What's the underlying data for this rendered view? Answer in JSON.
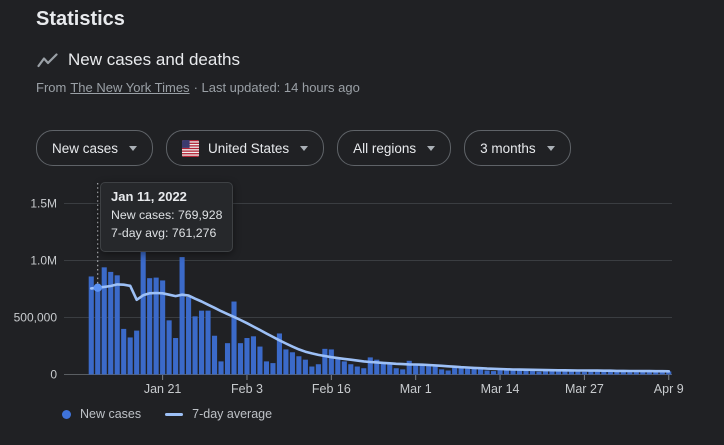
{
  "page": {
    "title": "Statistics"
  },
  "header": {
    "section_title": "New cases and deaths",
    "source_prefix": "From",
    "source_link": "The New York Times",
    "source_suffix": "· Last updated: 14 hours ago"
  },
  "filters": [
    {
      "label": "New cases"
    },
    {
      "label": "United States",
      "flag": "us-flag"
    },
    {
      "label": "All regions"
    },
    {
      "label": "3 months"
    }
  ],
  "tooltip": {
    "title": "Jan 11, 2022",
    "line1": "New cases: 769,928",
    "line2": "7-day avg: 761,276"
  },
  "legend": {
    "items": [
      {
        "label": "New cases"
      },
      {
        "label": "7-day average"
      }
    ]
  },
  "colors": {
    "background": "#202124",
    "bar": "#3b6ac9",
    "avg_line": "#9dc0f6",
    "selected_dot": "#5b92f4",
    "selection_line": "#c9ccd0",
    "text_primary": "#e8eaed",
    "text_secondary": "#9aa0a6",
    "axis_text": "#c8cbce",
    "gridline": "#3a3d41",
    "axis_line": "#5a5e62",
    "tick": "#7d8287",
    "chip_border": "#5f6368",
    "tooltip_bg": "#26282b",
    "flag_red": "#b22234",
    "flag_white": "#eeeeee",
    "flag_canton": "#3c3b6e"
  },
  "chart_data": {
    "type": "bar",
    "title": "New cases and deaths",
    "x_start_date": "Jan 10, 2022",
    "x_end_date": "Apr 9, 2022",
    "x_tick_labels": [
      "Jan 21",
      "Feb 3",
      "Feb 16",
      "Mar 1",
      "Mar 14",
      "Mar 27",
      "Apr 9"
    ],
    "x_tick_day_index": [
      11,
      24,
      37,
      50,
      63,
      76,
      89
    ],
    "y_tick_labels": [
      "0",
      "500,000",
      "1.0M",
      "1.5M"
    ],
    "y_tick_values": [
      0,
      500000,
      1000000,
      1500000
    ],
    "ylim": [
      0,
      1500000
    ],
    "grid": true,
    "legend_position": "bottom-left",
    "selected": {
      "day_index": 1,
      "date": "Jan 11, 2022",
      "new_cases": 769928,
      "seven_day_avg": 761276
    },
    "series": [
      {
        "name": "New cases",
        "type": "bar",
        "values": [
          860000,
          769928,
          940000,
          900000,
          870000,
          400000,
          325000,
          385000,
          1165000,
          845000,
          850000,
          825000,
          475000,
          320000,
          1030000,
          680000,
          510000,
          560000,
          560000,
          340000,
          115000,
          275000,
          640000,
          275000,
          320000,
          335000,
          245000,
          115000,
          100000,
          360000,
          220000,
          195000,
          160000,
          130000,
          70000,
          90000,
          225000,
          220000,
          140000,
          115000,
          90000,
          70000,
          55000,
          150000,
          130000,
          110000,
          100000,
          55000,
          45000,
          120000,
          95000,
          80000,
          75000,
          70000,
          45000,
          35000,
          60000,
          55000,
          55000,
          50000,
          48000,
          35000,
          30000,
          45000,
          42000,
          40000,
          40000,
          38000,
          30000,
          25000,
          38000,
          36000,
          36000,
          35000,
          34000,
          26000,
          24000,
          34000,
          33000,
          33000,
          32000,
          31000,
          24000,
          22000,
          30000,
          30000,
          29000,
          29000,
          28000,
          27000
        ]
      },
      {
        "name": "7-day average",
        "type": "line",
        "values": [
          755000,
          761276,
          768000,
          776000,
          790000,
          788000,
          778000,
          655000,
          695000,
          712000,
          715000,
          712000,
          700000,
          688000,
          700000,
          692000,
          665000,
          640000,
          612000,
          585000,
          556000,
          530000,
          505000,
          478000,
          450000,
          420000,
          390000,
          360000,
          330000,
          300000,
          272000,
          245000,
          220000,
          200000,
          185000,
          172000,
          162000,
          152000,
          144000,
          137000,
          130000,
          122000,
          115000,
          110000,
          106000,
          102000,
          98000,
          94000,
          91000,
          89000,
          88000,
          86000,
          83000,
          80000,
          76000,
          72000,
          68000,
          64000,
          61000,
          58000,
          55000,
          52000,
          50000,
          48000,
          46000,
          44000,
          43000,
          42000,
          41000,
          40000,
          39000,
          38000,
          37000,
          37000,
          36000,
          35000,
          35000,
          34000,
          34000,
          33000,
          33000,
          32000,
          32000,
          31000,
          31000,
          30000,
          30000,
          29000,
          29000,
          28000
        ]
      }
    ]
  }
}
